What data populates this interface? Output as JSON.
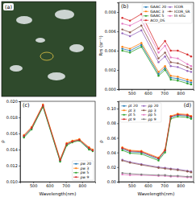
{
  "chart_data": [
    {
      "type": "image",
      "title": "(a)"
    },
    {
      "type": "line",
      "title": "(b)",
      "y_label": "Rrs (sr⁻¹)",
      "x": [
        443,
        490,
        560,
        665,
        705,
        740,
        783,
        842,
        865
      ],
      "xlim": [
        420,
        880
      ],
      "xticks": [
        500,
        600,
        700,
        800
      ],
      "ylim": [
        0,
        0.009
      ],
      "yticks": [
        {
          "value": 0,
          "label": "0.000"
        },
        0.002,
        0.004,
        0.006,
        0.008
      ],
      "legend": "upper right",
      "marker": "circle",
      "series": [
        {
          "name": "GAAC 20",
          "color": "#1f77b4",
          "values": [
            0.0042,
            0.004,
            0.0046,
            0.0016,
            0.0022,
            0.0012,
            0.0011,
            0.0008,
            0.0007
          ]
        },
        {
          "name": "GAAC 3",
          "color": "#ff7f0e",
          "values": [
            0.0044,
            0.0042,
            0.0048,
            0.0018,
            0.0024,
            0.0014,
            0.0013,
            0.001,
            0.0009
          ]
        },
        {
          "name": "GAAC 5",
          "color": "#2ca02c",
          "values": [
            0.004,
            0.0038,
            0.0044,
            0.0014,
            0.002,
            0.001,
            0.0009,
            0.0006,
            0.0005
          ]
        },
        {
          "name": "ACO_DS",
          "color": "#d62728",
          "values": [
            0.0074,
            0.0071,
            0.0078,
            0.0042,
            0.005,
            0.004,
            0.004,
            0.0036,
            0.0034
          ]
        },
        {
          "name": "ICOR",
          "color": "#9467bd",
          "values": [
            0.0058,
            0.0055,
            0.0061,
            0.0028,
            0.0034,
            0.0024,
            0.0023,
            0.0019,
            0.0018
          ]
        },
        {
          "name": "ICOR_SR",
          "color": "#8c564b",
          "values": [
            0.0062,
            0.0059,
            0.0066,
            0.0032,
            0.0038,
            0.0028,
            0.0027,
            0.0023,
            0.0021
          ]
        },
        {
          "name": "In situ",
          "color": "#e377c2",
          "values": [
            0.0068,
            0.0066,
            0.0072,
            0.0038,
            0.0045,
            0.0033,
            0.0032,
            0.0026,
            0.0024
          ]
        }
      ]
    },
    {
      "type": "line",
      "title": "(c)",
      "y_label": "ρ",
      "x_label": "Wavelength(nm)",
      "x": [
        443,
        490,
        560,
        665,
        705,
        740,
        783,
        842,
        865
      ],
      "xlim": [
        420,
        880
      ],
      "xticks": [
        500,
        600,
        700,
        800
      ],
      "ylim": [
        0.01,
        0.02
      ],
      "yticks": [
        {
          "value": 0.01,
          "label": "0.010"
        },
        0.012,
        0.014,
        0.016,
        0.018,
        {
          "value": 0.02,
          "label": "0.020"
        }
      ],
      "legend": "lower right",
      "marker": "circle",
      "series": [
        {
          "name": "ρw 20",
          "color": "#1f77b4",
          "values": [
            0.0156,
            0.0166,
            0.0194,
            0.0126,
            0.0146,
            0.015,
            0.0152,
            0.0141,
            0.0139
          ]
        },
        {
          "name": "ρw 3",
          "color": "#ff7f0e",
          "values": [
            0.0158,
            0.0168,
            0.0196,
            0.0128,
            0.0148,
            0.0151,
            0.0153,
            0.0143,
            0.014
          ]
        },
        {
          "name": "ρw 5",
          "color": "#2ca02c",
          "values": [
            0.0155,
            0.0165,
            0.0193,
            0.0125,
            0.0145,
            0.0149,
            0.0151,
            0.014,
            0.0138
          ]
        },
        {
          "name": "ρw 9",
          "color": "#d62728",
          "values": [
            0.0157,
            0.0167,
            0.0195,
            0.0127,
            0.0147,
            0.015,
            0.0152,
            0.0142,
            0.0139
          ]
        }
      ]
    },
    {
      "type": "line",
      "title": "(d)",
      "y_label": "ρ",
      "x_label": "Wavelength(nm)",
      "x": [
        443,
        490,
        560,
        665,
        705,
        740,
        783,
        842,
        865
      ],
      "xlim": [
        420,
        880
      ],
      "xticks": [
        500,
        600,
        700,
        800
      ],
      "ylim": [
        0,
        0.11
      ],
      "yticks": [
        {
          "value": 0,
          "label": "0.00"
        },
        0.02,
        0.04,
        0.06,
        0.08,
        {
          "value": 0.1,
          "label": "0.10"
        }
      ],
      "legend": "upper left",
      "marker": "circle",
      "series": [
        {
          "name": "ρt 20",
          "color": "#1f77b4",
          "values": [
            0.045,
            0.041,
            0.04,
            0.031,
            0.042,
            0.088,
            0.091,
            0.09,
            0.088
          ]
        },
        {
          "name": "ρt 3",
          "color": "#ff7f0e",
          "values": [
            0.047,
            0.043,
            0.042,
            0.033,
            0.044,
            0.09,
            0.093,
            0.092,
            0.09
          ]
        },
        {
          "name": "ρt 5",
          "color": "#2ca02c",
          "values": [
            0.043,
            0.039,
            0.038,
            0.029,
            0.04,
            0.086,
            0.089,
            0.088,
            0.086
          ]
        },
        {
          "name": "ρt 9",
          "color": "#d62728",
          "values": [
            0.046,
            0.042,
            0.041,
            0.032,
            0.043,
            0.089,
            0.092,
            0.091,
            0.089
          ]
        },
        {
          "name": "ρp 20",
          "color": "#9467bd",
          "values": [
            0.03,
            0.027,
            0.024,
            0.02,
            0.019,
            0.018,
            0.017,
            0.015,
            0.014
          ]
        },
        {
          "name": "ρp 3",
          "color": "#8c564b",
          "values": [
            0.029,
            0.026,
            0.023,
            0.019,
            0.018,
            0.017,
            0.016,
            0.014,
            0.013
          ]
        },
        {
          "name": "ρp 5",
          "color": "#e377c2",
          "values": [
            0.01,
            0.009,
            0.009,
            0.008,
            0.008,
            0.007,
            0.007,
            0.006,
            0.006
          ]
        },
        {
          "name": "ρp 9",
          "color": "#7f7f7f",
          "values": [
            0.012,
            0.011,
            0.01,
            0.009,
            0.009,
            0.008,
            0.008,
            0.007,
            0.007
          ]
        }
      ]
    }
  ]
}
